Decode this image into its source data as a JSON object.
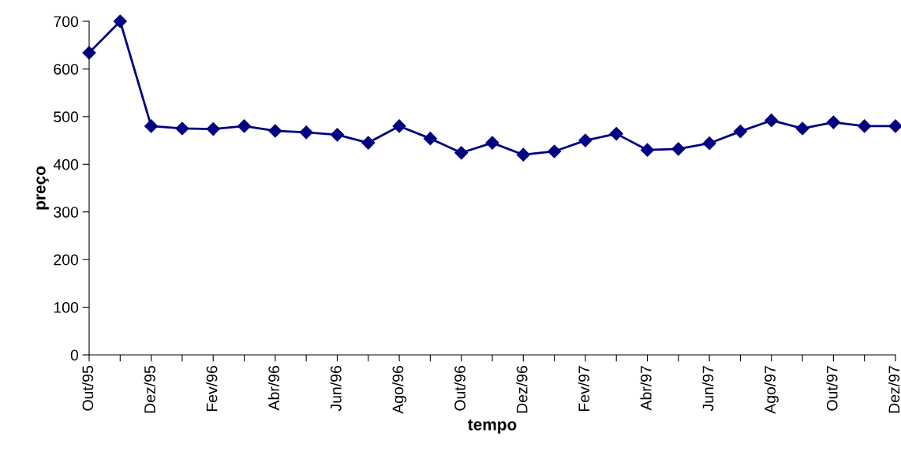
{
  "chart_data": {
    "type": "line",
    "xlabel": "tempo",
    "ylabel": "preço",
    "categories": [
      "Out/95",
      null,
      "Dez/95",
      null,
      "Fev/96",
      null,
      "Abr/96",
      null,
      "Jun/96",
      null,
      "Ago/96",
      null,
      "Out/96",
      null,
      "Dez/96",
      null,
      "Fev/97",
      null,
      "Abr/97",
      null,
      "Jun/97",
      null,
      "Ago/97",
      null,
      "Out/97",
      null,
      "Dez/97"
    ],
    "series": [
      {
        "color": "#000080",
        "values": [
          634,
          700,
          480,
          475,
          474,
          480,
          470,
          467,
          462,
          445,
          480,
          454,
          424,
          445,
          420,
          427,
          450,
          464,
          430,
          432,
          444,
          469,
          492,
          475,
          488,
          480,
          480
        ]
      }
    ],
    "ylim": [
      0,
      700
    ],
    "yticks": [
      0,
      100,
      200,
      300,
      400,
      500,
      600,
      700
    ],
    "marker": "diamond",
    "line_style": "solid",
    "grid": false,
    "legend": false
  }
}
